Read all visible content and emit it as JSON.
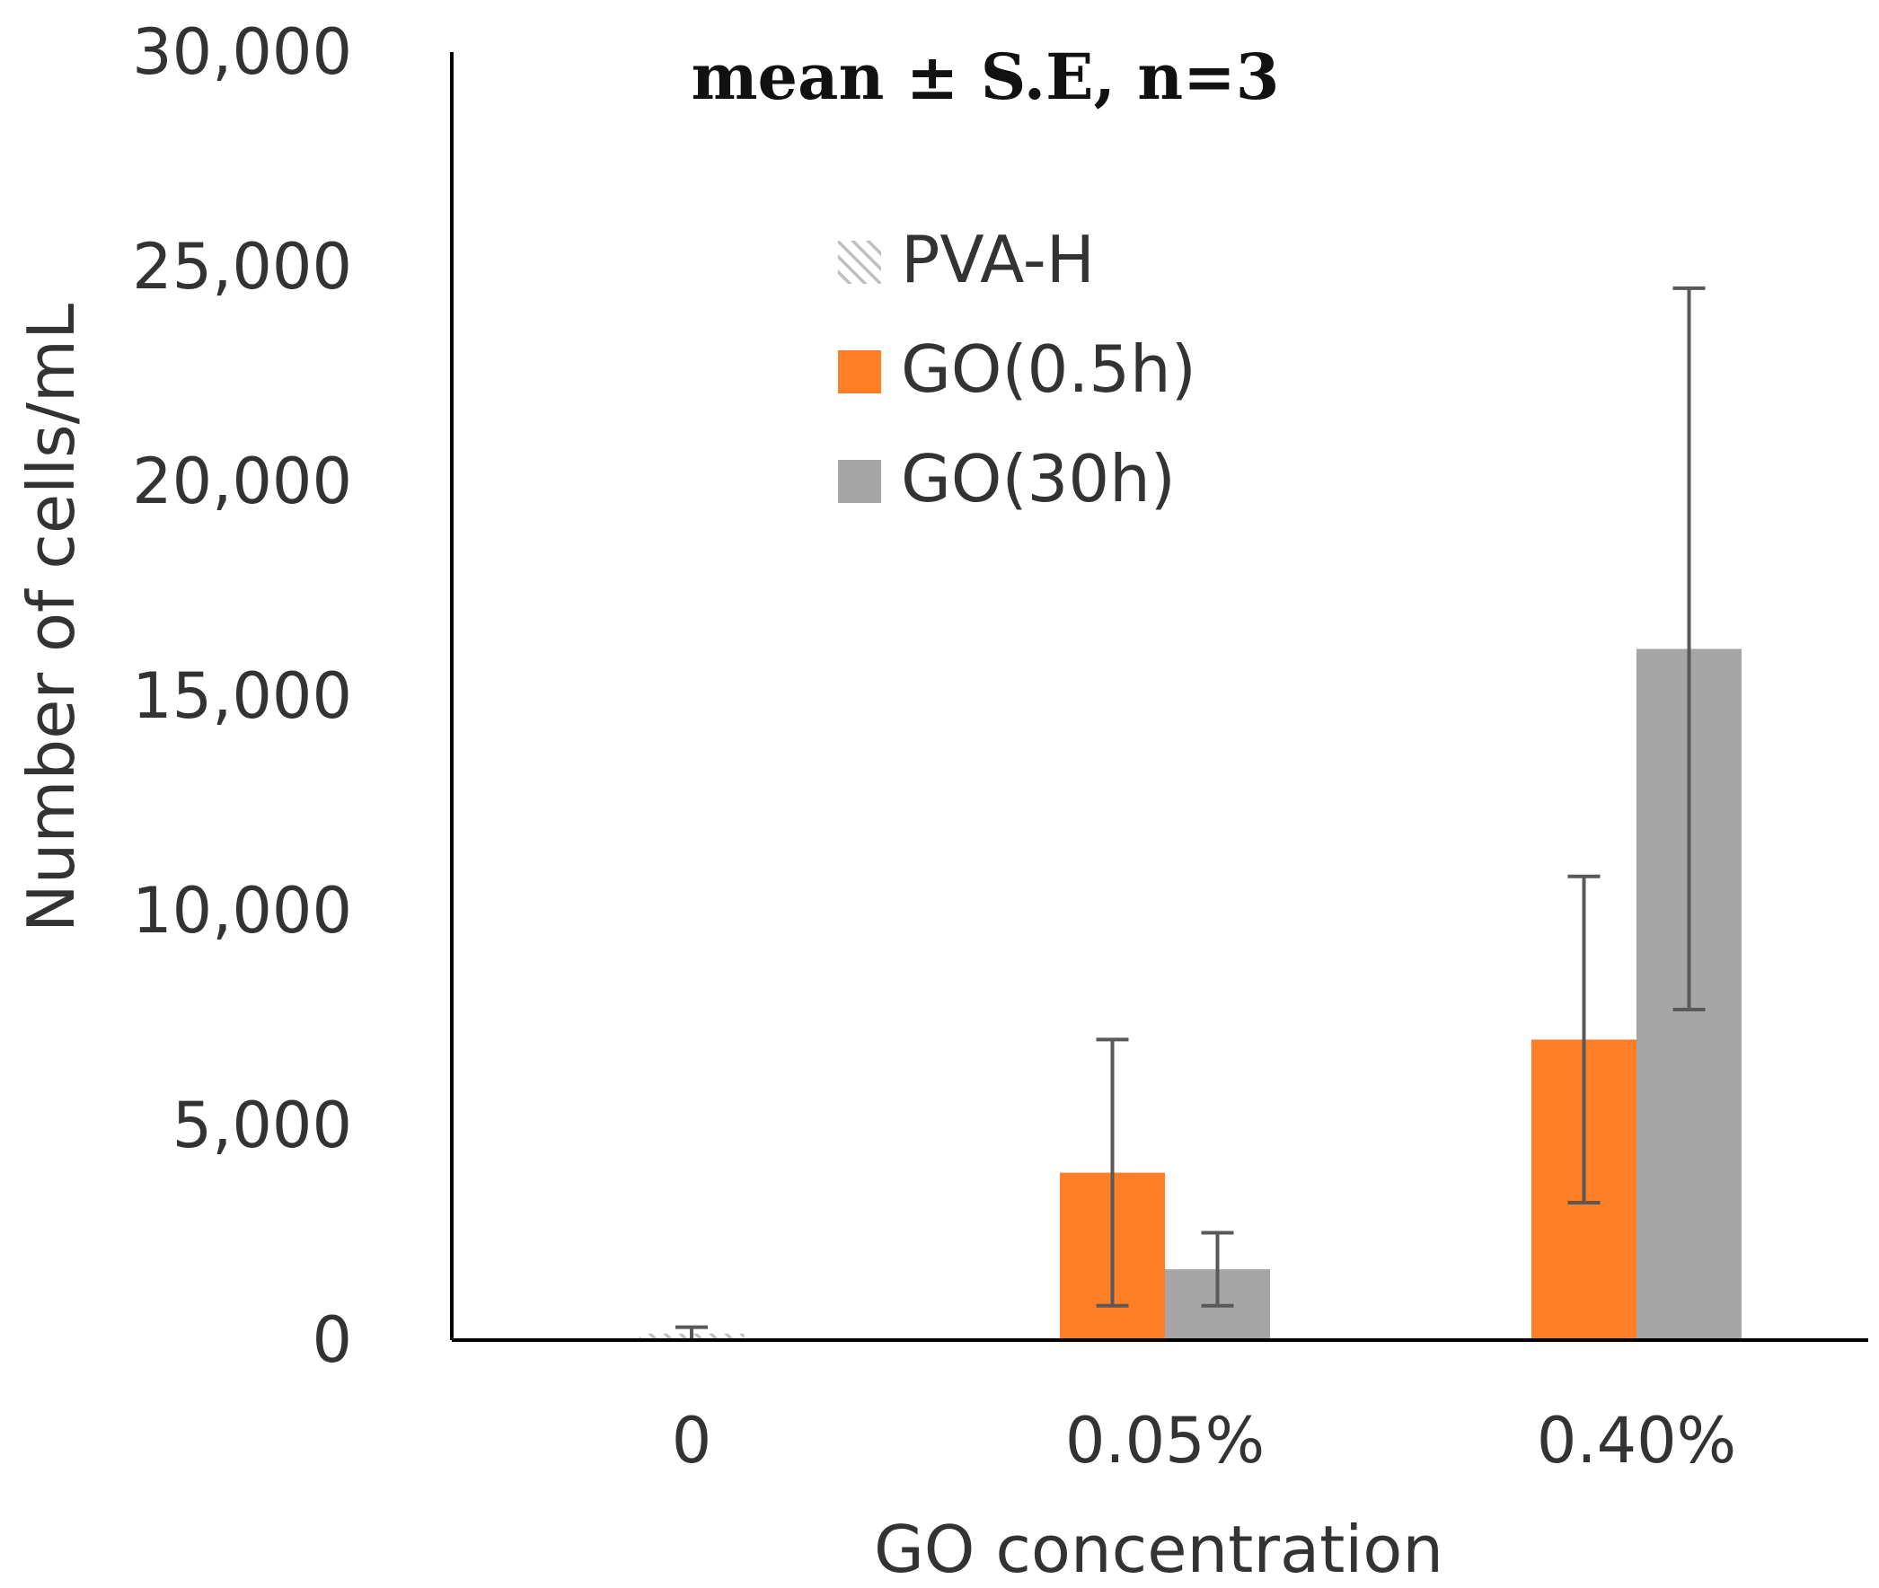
{
  "chart_data": {
    "type": "bar",
    "annotation": "mean ± S.E, n=3",
    "categories": [
      "0",
      "0.05%",
      "0.40%"
    ],
    "xlabel": "GO concentration",
    "ylabel": "Number of cells/mL",
    "ylim": [
      0,
      30000
    ],
    "yticks": [
      0,
      5000,
      10000,
      15000,
      20000,
      25000,
      30000
    ],
    "ytick_labels": [
      "0",
      "5,000",
      "10,000",
      "15,000",
      "20,000",
      "25,000",
      "30,000"
    ],
    "legend_position": "top-center",
    "grid": false,
    "series": [
      {
        "name": "PVA-H",
        "color": "#bfbfbf",
        "pattern": "hatched",
        "values": [
          150,
          null,
          null
        ],
        "errors": [
          150,
          null,
          null
        ]
      },
      {
        "name": "GO(0.5h)",
        "color": "#ff7f27",
        "pattern": "solid",
        "values": [
          null,
          3900,
          7000
        ],
        "errors": [
          null,
          3100,
          3800
        ]
      },
      {
        "name": "GO(30h)",
        "color": "#a6a6a6",
        "pattern": "solid",
        "values": [
          null,
          1650,
          16100
        ],
        "errors": [
          null,
          850,
          8400
        ]
      }
    ]
  }
}
